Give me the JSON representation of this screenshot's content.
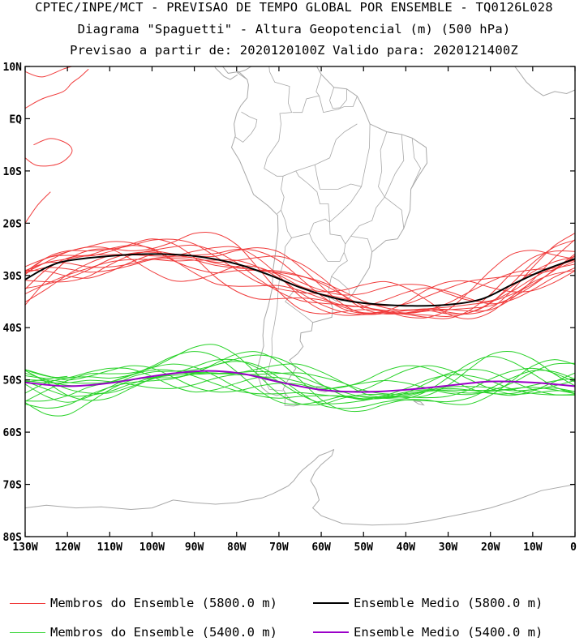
{
  "title": {
    "line1": "CPTEC/INPE/MCT - PREVISAO DE TEMPO GLOBAL POR ENSEMBLE - TQ0126L028",
    "line2": "Diagrama \"Spaguetti\" - Altura Geopotencial (m) (500 hPa)",
    "line3": "Previsao a partir de: 2020120100Z  Valido para: 2020121400Z"
  },
  "map": {
    "lon_range": [
      -130,
      0
    ],
    "lat_range": [
      -80,
      10
    ],
    "lat_ticks": [
      {
        "value": 10,
        "label": "10N"
      },
      {
        "value": 0,
        "label": "EQ"
      },
      {
        "value": -10,
        "label": "10S"
      },
      {
        "value": -20,
        "label": "20S"
      },
      {
        "value": -30,
        "label": "30S"
      },
      {
        "value": -40,
        "label": "40S"
      },
      {
        "value": -50,
        "label": "50S"
      },
      {
        "value": -60,
        "label": "60S"
      },
      {
        "value": -70,
        "label": "70S"
      },
      {
        "value": -80,
        "label": "80S"
      }
    ],
    "lon_ticks": [
      {
        "value": -130,
        "label": "130W"
      },
      {
        "value": -120,
        "label": "120W"
      },
      {
        "value": -110,
        "label": "110W"
      },
      {
        "value": -100,
        "label": "100W"
      },
      {
        "value": -90,
        "label": "90W"
      },
      {
        "value": -80,
        "label": "80W"
      },
      {
        "value": -70,
        "label": "70W"
      },
      {
        "value": -60,
        "label": "60W"
      },
      {
        "value": -50,
        "label": "50W"
      },
      {
        "value": -40,
        "label": "40W"
      },
      {
        "value": -30,
        "label": "30W"
      },
      {
        "value": -20,
        "label": "20W"
      },
      {
        "value": -10,
        "label": "10W"
      },
      {
        "value": 0,
        "label": "0"
      }
    ],
    "colors": {
      "member_5800": "#f03c3c",
      "member_5400": "#28d228",
      "mean_5800": "#000000",
      "mean_5400": "#9a00c8",
      "coast": "#a8a8a8"
    },
    "mean_5800": [
      [
        -130,
        -30.8
      ],
      [
        -125,
        -28.5
      ],
      [
        -120,
        -27.2
      ],
      [
        -110,
        -26.3
      ],
      [
        -100,
        -25.9
      ],
      [
        -90,
        -26.3
      ],
      [
        -80,
        -27.8
      ],
      [
        -72,
        -30
      ],
      [
        -65,
        -32.3
      ],
      [
        -57,
        -34.3
      ],
      [
        -50,
        -35.3
      ],
      [
        -40,
        -35.8
      ],
      [
        -30,
        -35.6
      ],
      [
        -22,
        -34.5
      ],
      [
        -15,
        -31.8
      ],
      [
        -8,
        -29.2
      ],
      [
        0,
        -26.8
      ]
    ],
    "mean_5400": [
      [
        -130,
        -50.5
      ],
      [
        -120,
        -51.2
      ],
      [
        -110,
        -50.6
      ],
      [
        -100,
        -49.3
      ],
      [
        -92,
        -48.5
      ],
      [
        -85,
        -48.3
      ],
      [
        -78,
        -48.9
      ],
      [
        -70,
        -50.4
      ],
      [
        -60,
        -51.9
      ],
      [
        -50,
        -52.3
      ],
      [
        -40,
        -51.9
      ],
      [
        -30,
        -51.1
      ],
      [
        -20,
        -50.3
      ],
      [
        -10,
        -50.5
      ],
      [
        0,
        -51.2
      ]
    ],
    "members_5800": [
      {
        "base": -30.5,
        "amp": 1.5,
        "phase": 0.2
      },
      {
        "base": -30.0,
        "amp": 3.0,
        "phase": 1.1
      },
      {
        "base": -31.0,
        "amp": 2.5,
        "phase": 2.0
      },
      {
        "base": -30.8,
        "amp": 1.8,
        "phase": 3.0
      },
      {
        "base": -31.3,
        "amp": 3.3,
        "phase": 4.0
      },
      {
        "base": -29.7,
        "amp": 2.2,
        "phase": 5.0
      },
      {
        "base": -30.2,
        "amp": 2.8,
        "phase": 0.7
      },
      {
        "base": -31.6,
        "amp": 1.3,
        "phase": 1.7
      },
      {
        "base": -30.4,
        "amp": 3.6,
        "phase": 2.6
      },
      {
        "base": -29.9,
        "amp": 2.0,
        "phase": 3.6
      },
      {
        "base": -31.2,
        "amp": 2.6,
        "phase": 4.6
      },
      {
        "base": -30.6,
        "amp": 3.1,
        "phase": 5.6
      },
      {
        "base": -30.9,
        "amp": 1.7,
        "phase": 0.4
      },
      {
        "base": -30.3,
        "amp": 2.4,
        "phase": 1.4
      }
    ],
    "members_5400": [
      {
        "base": -50.0,
        "amp": 1.5,
        "phase": 0.3
      },
      {
        "base": -49.5,
        "amp": 2.5,
        "phase": 1.2
      },
      {
        "base": -50.6,
        "amp": 2.0,
        "phase": 2.1
      },
      {
        "base": -50.2,
        "amp": 3.0,
        "phase": 3.1
      },
      {
        "base": -51.0,
        "amp": 1.8,
        "phase": 4.1
      },
      {
        "base": -49.8,
        "amp": 2.8,
        "phase": 5.1
      },
      {
        "base": -50.4,
        "amp": 1.3,
        "phase": 0.8
      },
      {
        "base": -51.2,
        "amp": 2.3,
        "phase": 1.8
      },
      {
        "base": -49.6,
        "amp": 3.3,
        "phase": 2.7
      },
      {
        "base": -50.8,
        "amp": 2.1,
        "phase": 3.7
      },
      {
        "base": -50.1,
        "amp": 2.7,
        "phase": 4.7
      },
      {
        "base": -50.5,
        "amp": 1.6,
        "phase": 5.7
      },
      {
        "base": -49.9,
        "amp": 2.4,
        "phase": 0.5
      },
      {
        "base": -50.7,
        "amp": 3.5,
        "phase": 1.5
      }
    ],
    "extra_5800": [
      [
        [
          -130,
          9
        ],
        [
          -126,
          8
        ],
        [
          -121,
          9.5
        ],
        [
          -119,
          10
        ]
      ],
      [
        [
          -130,
          2
        ],
        [
          -126,
          3.8
        ],
        [
          -121,
          5.2
        ],
        [
          -119,
          6.8
        ],
        [
          -117,
          8
        ],
        [
          -115,
          9.5
        ]
      ],
      [
        [
          -130,
          -20
        ],
        [
          -127,
          -16.5
        ],
        [
          -124,
          -14
        ]
      ],
      [
        [
          -128,
          -5
        ],
        [
          -124,
          -3.8
        ],
        [
          -120,
          -4.8
        ],
        [
          -119,
          -6.5
        ],
        [
          -122,
          -8.6
        ],
        [
          -127,
          -9
        ],
        [
          -130,
          -7.5
        ]
      ]
    ],
    "extra_5400": [
      [
        [
          -130,
          -49.2
        ],
        [
          -125,
          -49.7
        ],
        [
          -120,
          -49.3
        ]
      ]
    ]
  },
  "legend": [
    {
      "id": "m5800",
      "label": "Membros do Ensemble (5800.0 m)",
      "color": "#f03c3c"
    },
    {
      "id": "e5800",
      "label": "Ensemble Medio (5800.0 m)",
      "color": "#000000"
    },
    {
      "id": "m5400",
      "label": "Membros do Ensemble (5400.0 m)",
      "color": "#28d228"
    },
    {
      "id": "e5400",
      "label": "Ensemble Medio (5400.0 m)",
      "color": "#9a00c8"
    }
  ]
}
